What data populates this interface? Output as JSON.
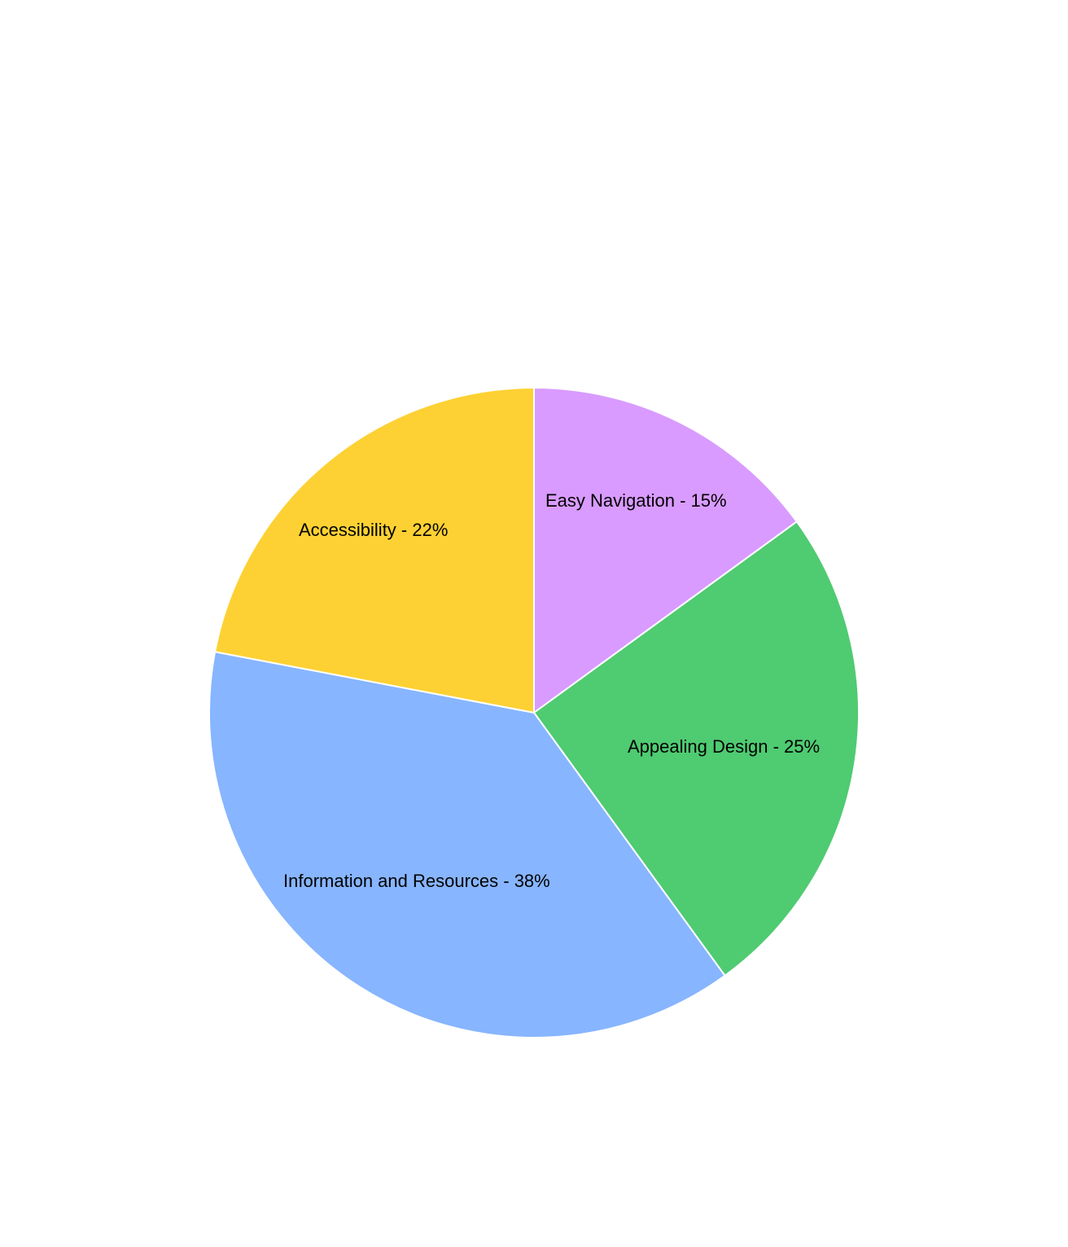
{
  "chart_data": {
    "type": "pie",
    "title": "",
    "start_angle": "12 o'clock",
    "direction": "clockwise",
    "slices": [
      {
        "label": "Easy Navigation",
        "value": 15,
        "display": "Easy Navigation - 15%",
        "color": "#D99BFF"
      },
      {
        "label": "Appealing Design",
        "value": 25,
        "display": "Appealing Design - 25%",
        "color": "#4FCB71"
      },
      {
        "label": "Information and Resources",
        "value": 38,
        "display": "Information and Resources - 38%",
        "color": "#87B5FF"
      },
      {
        "label": "Accessibility",
        "value": 22,
        "display": "Accessibility - 22%",
        "color": "#FDD133"
      }
    ]
  }
}
